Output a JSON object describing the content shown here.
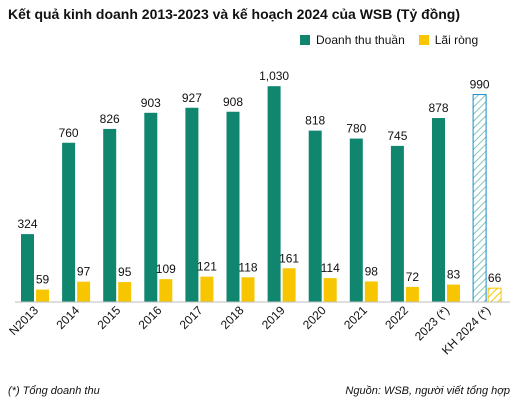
{
  "colors": {
    "revenue": "#11866e",
    "profit": "#f7c600",
    "plan_outline": "#1a8ac8"
  },
  "footnote": "(*) Tổng doanh thu",
  "source": "Nguồn: WSB, người viết tổng hợp",
  "chart_data": {
    "type": "bar",
    "title": "Kết quả kinh doanh 2013-2023 và kế hoạch 2024 của WSB (Tỷ đồng)",
    "xlabel": "",
    "ylabel": "",
    "ylim": [
      0,
      1050
    ],
    "grid": false,
    "legend_position": "top-right",
    "categories": [
      "N2013",
      "2014",
      "2015",
      "2016",
      "2017",
      "2018",
      "2019",
      "2020",
      "2021",
      "2022",
      "2023 (*)",
      "KH 2024 (*)"
    ],
    "value_labels": {
      "revenue": [
        "324",
        "760",
        "826",
        "903",
        "927",
        "908",
        "1,030",
        "818",
        "780",
        "745",
        "878",
        "990"
      ],
      "profit": [
        "59",
        "97",
        "95",
        "109",
        "121",
        "118",
        "161",
        "114",
        "98",
        "72",
        "83",
        "66"
      ]
    },
    "series": [
      {
        "name": "Doanh thu thuần",
        "values": [
          324,
          760,
          826,
          903,
          927,
          908,
          1030,
          818,
          780,
          745,
          878,
          990
        ]
      },
      {
        "name": "Lãi ròng",
        "values": [
          59,
          97,
          95,
          109,
          121,
          118,
          161,
          114,
          98,
          72,
          83,
          66
        ]
      }
    ],
    "plan_category": "KH 2024 (*)"
  }
}
